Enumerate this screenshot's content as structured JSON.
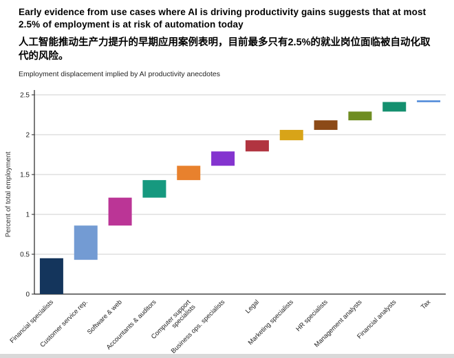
{
  "header": {
    "title_en": "Early evidence from use cases where AI is driving productivity gains suggests that at most 2.5% of employment is at risk of automation today",
    "title_zh": "人工智能推动生产力提升的早期应用案例表明，目前最多只有2.5%的就业岗位面临被自动化取代的风险。"
  },
  "chart_data": {
    "type": "bar",
    "subtype": "waterfall",
    "title": "Employment displacement implied by AI productivity anecdotes",
    "xlabel": "",
    "ylabel": "Percent of total employment",
    "ylim": [
      0,
      2.5
    ],
    "yticks": [
      0,
      0.5,
      1,
      1.5,
      2,
      2.5
    ],
    "grid": "horizontal",
    "legend": "none",
    "categories": [
      "Financial specialists",
      "Customer service rep.",
      "Software & web",
      "Accountants & auditors",
      "Computer support specialists",
      "Business ops. specialists",
      "Legal",
      "Marketing specialists",
      "HR specialists",
      "Management analysts",
      "Financial analysts",
      "Tax"
    ],
    "segments": [
      {
        "label": "Financial specialists",
        "start": 0.0,
        "end": 0.45,
        "color": "#14355c"
      },
      {
        "label": "Customer service rep.",
        "start": 0.43,
        "end": 0.86,
        "color": "#739bd3"
      },
      {
        "label": "Software & web",
        "start": 0.86,
        "end": 1.21,
        "color": "#bb3596"
      },
      {
        "label": "Accountants & auditors",
        "start": 1.21,
        "end": 1.43,
        "color": "#16997f"
      },
      {
        "label": "Computer support specialists",
        "start": 1.43,
        "end": 1.61,
        "color": "#e8812d"
      },
      {
        "label": "Business ops. specialists",
        "start": 1.61,
        "end": 1.79,
        "color": "#8434cf"
      },
      {
        "label": "Legal",
        "start": 1.79,
        "end": 1.93,
        "color": "#b13440"
      },
      {
        "label": "Marketing specialists",
        "start": 1.93,
        "end": 2.06,
        "color": "#d8a418"
      },
      {
        "label": "HR specialists",
        "start": 2.06,
        "end": 2.18,
        "color": "#8c4a17"
      },
      {
        "label": "Management analysts",
        "start": 2.18,
        "end": 2.29,
        "color": "#6f8d22"
      },
      {
        "label": "Financial analysts",
        "start": 2.29,
        "end": 2.41,
        "color": "#14906f"
      },
      {
        "label": "Tax",
        "start": 2.41,
        "end": 2.43,
        "color": "#4a86d8"
      }
    ],
    "colors": {
      "grid": "#cfcfcf",
      "axis": "#222222",
      "text": "#222222",
      "bottom_strip": "#d9d9d9"
    }
  }
}
